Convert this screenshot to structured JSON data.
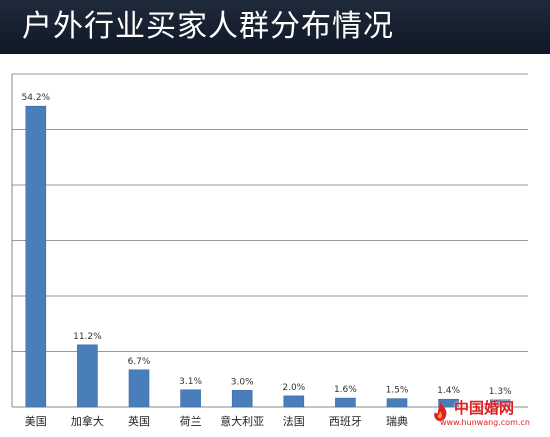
{
  "title": "户外行业买家人群分布情况",
  "colors": {
    "bar": "#4a7ebb",
    "title_bg": "#17202f",
    "watermark": "#e02020"
  },
  "chart_data": {
    "type": "bar",
    "categories": [
      "美国",
      "加拿大",
      "英国",
      "荷兰",
      "意大利亚",
      "法国",
      "西班牙",
      "瑞典",
      "",
      ""
    ],
    "values": [
      54.2,
      11.2,
      6.7,
      3.1,
      3.0,
      2.0,
      1.6,
      1.5,
      1.4,
      1.3
    ],
    "data_labels": [
      "54.2%",
      "11.2%",
      "6.7%",
      "3.1%",
      "3.0%",
      "2.0%",
      "1.6%",
      "1.5%",
      "1.4%",
      "1.3%"
    ],
    "ylim": [
      0,
      60
    ],
    "grid": true,
    "legend": "none"
  },
  "watermark": {
    "logo_icon": "flame-logo-icon",
    "name": "中国婚网",
    "url": "www.hunwang.com.cn"
  }
}
